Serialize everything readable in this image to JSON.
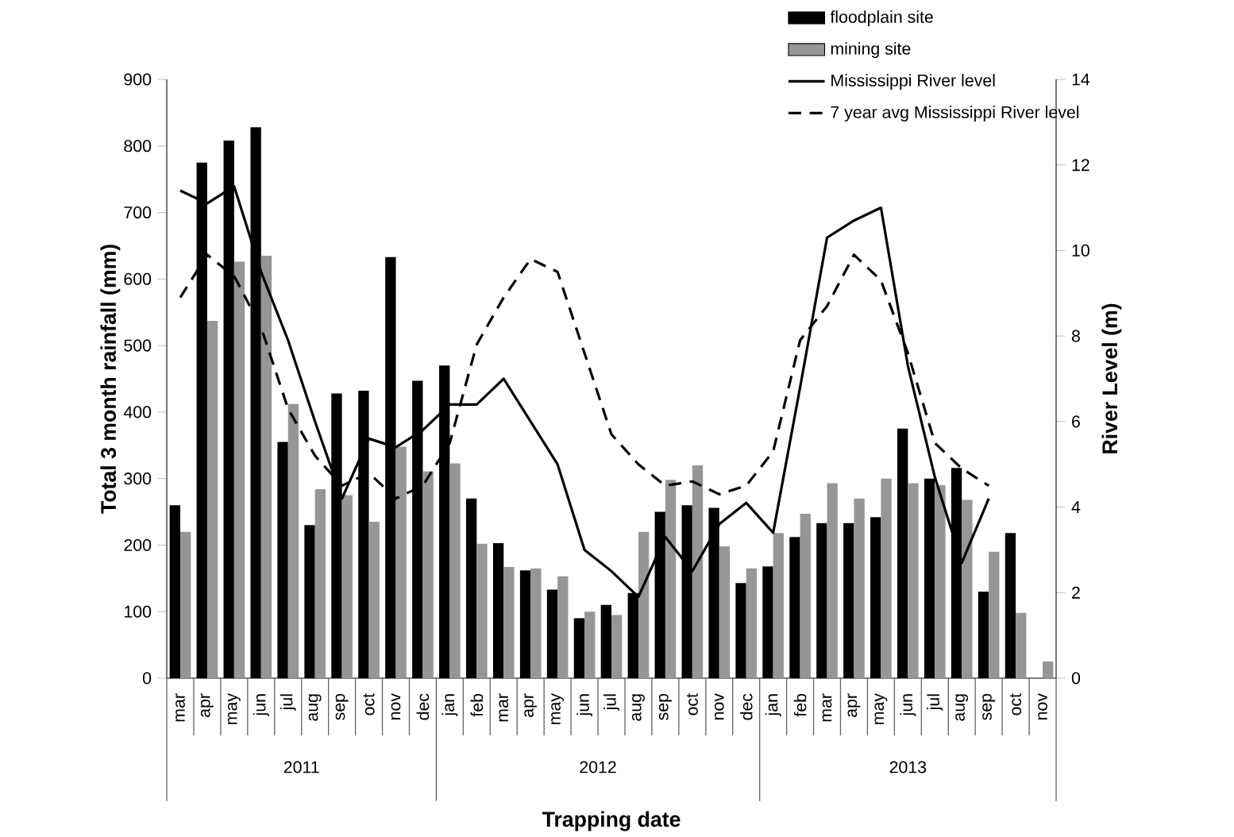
{
  "chart_data": {
    "type": "bar",
    "xlabel": "Trapping date",
    "ylabel": "Total 3 month rainfall  (mm)",
    "y2label": "River Level (m)",
    "categories": [
      "mar",
      "apr",
      "may",
      "jun",
      "jul",
      "aug",
      "sep",
      "oct",
      "nov",
      "dec",
      "jan",
      "feb",
      "mar",
      "apr",
      "may",
      "jun",
      "jul",
      "aug",
      "sep",
      "oct",
      "nov",
      "dec",
      "jan",
      "feb",
      "mar",
      "apr",
      "may",
      "jun",
      "jul",
      "aug",
      "sep",
      "oct",
      "nov"
    ],
    "annotations": [
      "2011",
      "2012",
      "2013"
    ],
    "series": [
      {
        "name": "floodplain site",
        "color": "#000000",
        "values": [
          260,
          775,
          808,
          828,
          355,
          230,
          428,
          432,
          633,
          447,
          470,
          270,
          203,
          162,
          133,
          90,
          110,
          128,
          250,
          260,
          256,
          143,
          168,
          212,
          233,
          233,
          242,
          375,
          300,
          316,
          130,
          218,
          null
        ]
      },
      {
        "name": "mining site",
        "color": "#969696",
        "values": [
          220,
          537,
          626,
          635,
          412,
          284,
          275,
          235,
          348,
          311,
          323,
          202,
          167,
          165,
          153,
          100,
          95,
          220,
          298,
          320,
          198,
          165,
          218,
          247,
          293,
          270,
          300,
          293,
          290,
          268,
          190,
          98,
          25
        ]
      },
      {
        "name": "Mississippi River level",
        "type": "line",
        "axis": "y2",
        "line_style": "solid",
        "color": "#000000",
        "values": [
          11.4,
          11.1,
          11.5,
          9.5,
          7.9,
          6.0,
          4.2,
          5.6,
          5.4,
          5.8,
          6.4,
          6.4,
          7.0,
          6.0,
          5.0,
          3.0,
          2.5,
          1.9,
          3.3,
          2.5,
          3.6,
          4.1,
          3.4,
          6.8,
          10.3,
          10.7,
          11.0,
          7.3,
          4.7,
          2.7,
          4.2,
          null,
          null
        ]
      },
      {
        "name": "7 year avg Mississippi River level",
        "type": "line",
        "axis": "y2",
        "line_style": "dashed",
        "color": "#000000",
        "values": [
          8.9,
          9.9,
          9.4,
          8.2,
          6.3,
          5.2,
          4.5,
          4.8,
          4.2,
          4.5,
          5.5,
          7.8,
          8.9,
          9.8,
          9.5,
          7.6,
          5.7,
          5.0,
          4.5,
          4.6,
          4.3,
          4.5,
          5.3,
          7.9,
          8.7,
          9.9,
          9.3,
          7.6,
          5.5,
          4.9,
          4.5,
          null,
          null
        ]
      }
    ],
    "ylim": [
      0,
      900
    ],
    "yticks": [
      0,
      100,
      200,
      300,
      400,
      500,
      600,
      700,
      800,
      900
    ],
    "y2lim": [
      0,
      14
    ],
    "y2ticks": [
      0,
      2,
      4,
      6,
      8,
      10,
      12,
      14
    ],
    "legend": "top right"
  }
}
